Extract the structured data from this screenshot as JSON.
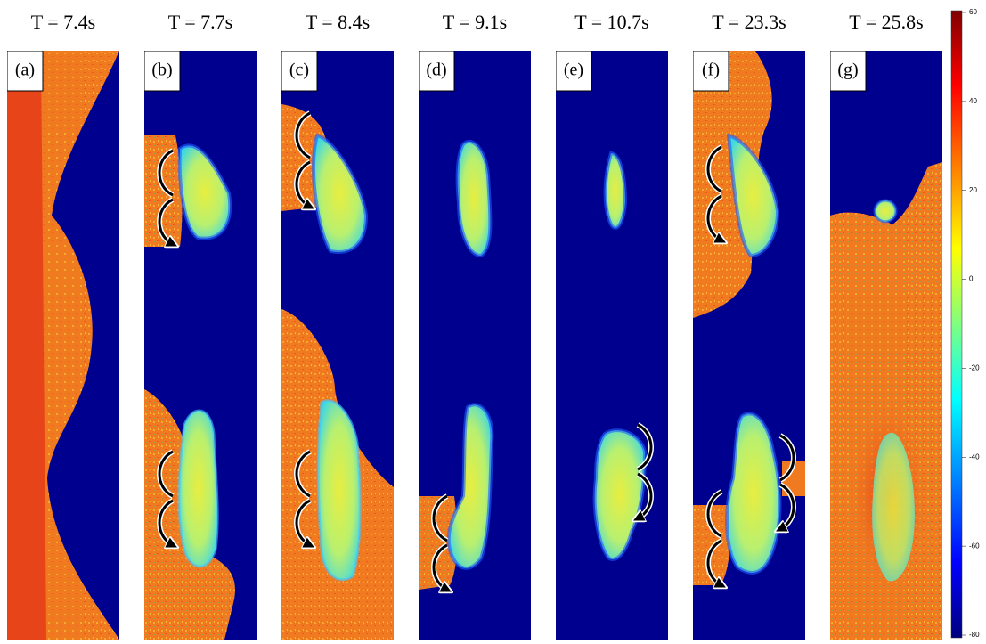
{
  "panels": [
    {
      "time": "T = 7.4s",
      "label": "(a)"
    },
    {
      "time": "T = 7.7s",
      "label": "(b)"
    },
    {
      "time": "T = 8.4s",
      "label": "(c)"
    },
    {
      "time": "T = 9.1s",
      "label": "(d)"
    },
    {
      "time": "T = 10.7s",
      "label": "(e)"
    },
    {
      "time": "T = 23.3s",
      "label": "(f)"
    },
    {
      "time": "T = 25.8s",
      "label": "(g)"
    }
  ],
  "colorbar": {
    "lim": [
      -80,
      60
    ],
    "ticks": [
      60,
      40,
      20,
      0,
      -20,
      -40,
      -60,
      -80
    ]
  }
}
